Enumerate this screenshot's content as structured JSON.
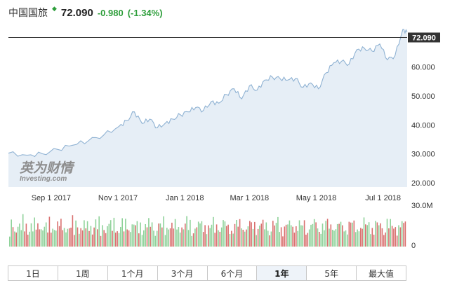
{
  "header": {
    "name": "中国国旅",
    "arrow": "◆",
    "price": "72.090",
    "change": "-0.980",
    "change_pct": "(-1.34%)"
  },
  "watermark": {
    "line1": "英为财情",
    "line2": "Investing.com"
  },
  "tabs": [
    {
      "label": "1日",
      "active": false
    },
    {
      "label": "1周",
      "active": false
    },
    {
      "label": "1个月",
      "active": false
    },
    {
      "label": "3个月",
      "active": false
    },
    {
      "label": "6个月",
      "active": false
    },
    {
      "label": "1年",
      "active": true
    },
    {
      "label": "5年",
      "active": false
    },
    {
      "label": "最大值",
      "active": false
    }
  ],
  "chart_data": {
    "type": "area",
    "price": {
      "x": [
        "2017-07-24",
        "2017-08-10",
        "2017-08-24",
        "2017-09-07",
        "2017-09-21",
        "2017-10-05",
        "2017-10-19",
        "2017-11-02",
        "2017-11-09",
        "2017-11-16",
        "2017-11-23",
        "2017-11-30",
        "2017-12-07",
        "2017-12-14",
        "2017-12-21",
        "2017-12-28",
        "2018-01-04",
        "2018-01-11",
        "2018-01-18",
        "2018-01-25",
        "2018-02-01",
        "2018-02-08",
        "2018-02-15",
        "2018-02-22",
        "2018-03-01",
        "2018-03-08",
        "2018-03-15",
        "2018-03-22",
        "2018-03-29",
        "2018-04-05",
        "2018-04-12",
        "2018-04-19",
        "2018-04-26",
        "2018-05-03",
        "2018-05-10",
        "2018-05-17",
        "2018-05-24",
        "2018-05-31",
        "2018-06-07",
        "2018-06-14",
        "2018-06-21",
        "2018-06-28",
        "2018-07-05",
        "2018-07-12",
        "2018-07-19",
        "2018-07-23"
      ],
      "y": [
        30.2,
        29.5,
        30.0,
        31.5,
        33.0,
        34.5,
        36.5,
        39.5,
        41.5,
        44.5,
        40.5,
        42.0,
        39.0,
        40.5,
        42.0,
        43.5,
        44.5,
        46.0,
        45.0,
        48.0,
        47.5,
        50.5,
        52.5,
        49.0,
        53.5,
        52.0,
        55.5,
        56.5,
        56.0,
        55.5,
        56.0,
        53.0,
        54.5,
        52.5,
        58.0,
        61.5,
        62.0,
        61.0,
        66.0,
        66.5,
        65.5,
        68.0,
        62.5,
        64.0,
        73.0,
        72.09
      ],
      "last_label": "72.090",
      "ylim": [
        18.5,
        73.5
      ],
      "yticks": [
        "20.000",
        "30.000",
        "40.000",
        "50.000",
        "60.000"
      ],
      "xticks": [
        {
          "label": "Sep 1 2017",
          "date": "2017-09-01"
        },
        {
          "label": "Nov 1 2017",
          "date": "2017-11-01"
        },
        {
          "label": "Jan 1 2018",
          "date": "2018-01-01"
        },
        {
          "label": "Mar 1 2018",
          "date": "2018-03-01"
        },
        {
          "label": "May 1 2018",
          "date": "2018-05-01"
        },
        {
          "label": "Jul 1 2018",
          "date": "2018-07-01"
        }
      ]
    },
    "volume": {
      "max_label": "30.0M",
      "zero_label": "0",
      "ymax": 30.0,
      "unit": "M"
    },
    "colors": {
      "line": "#8fb2d3",
      "fill": "#e6eef6",
      "up": "#8fd29a",
      "down": "#d9706f",
      "ref_line": "#333333",
      "badge": "#333333"
    }
  }
}
